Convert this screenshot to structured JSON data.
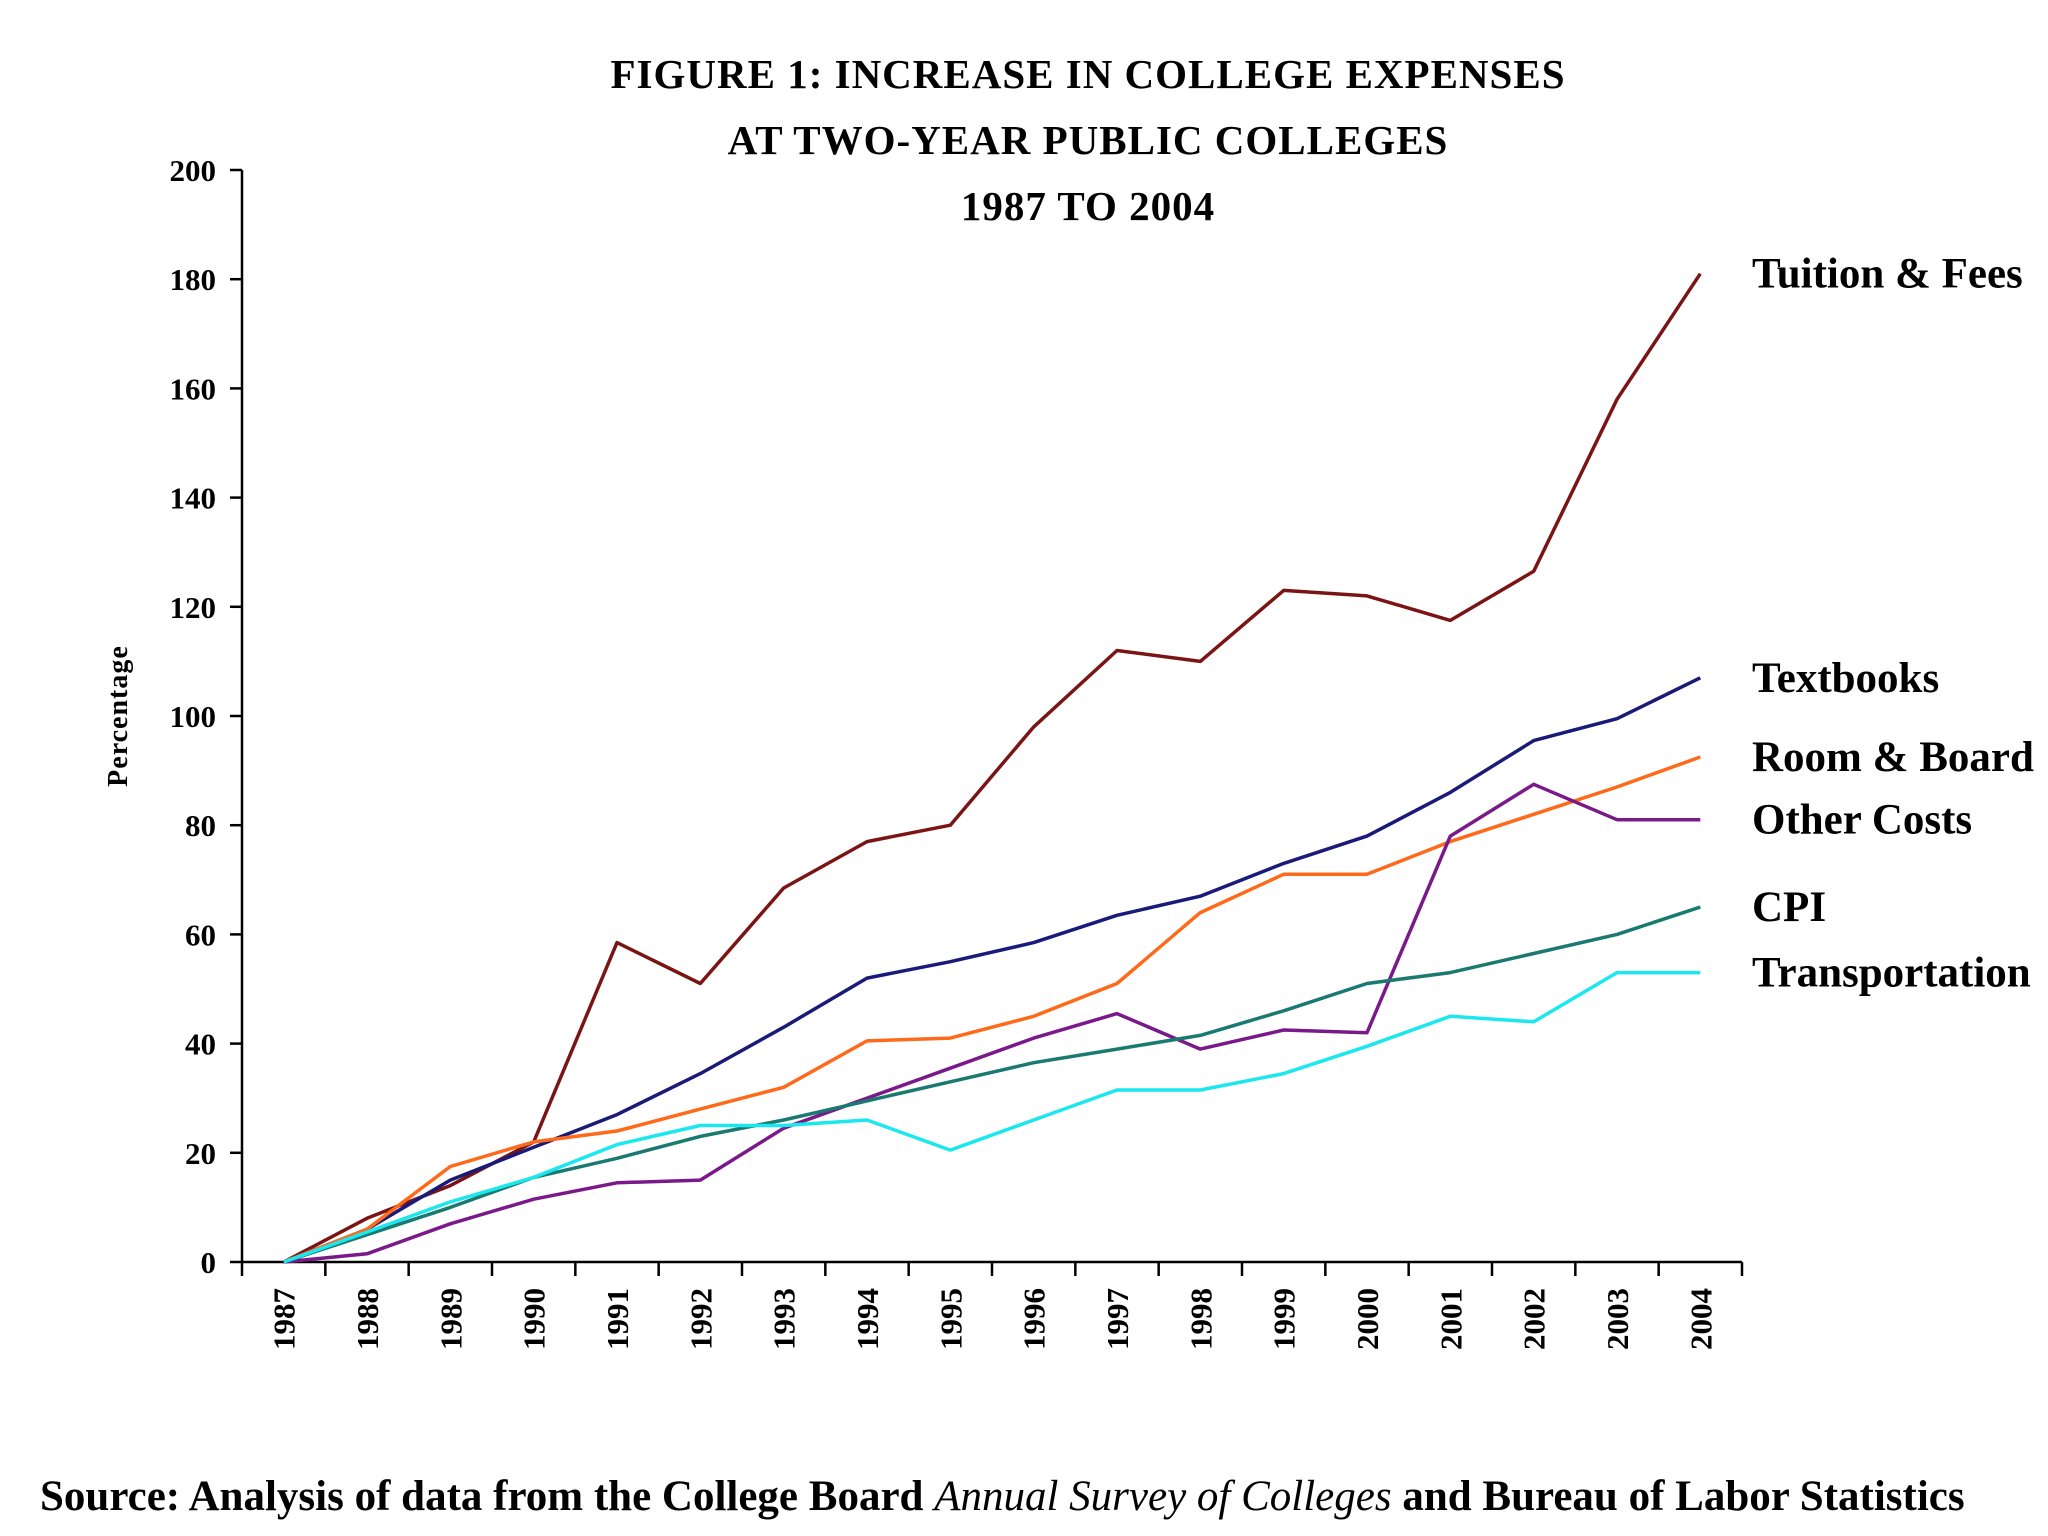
{
  "chart_data": {
    "type": "line",
    "title": [
      "FIGURE 1: INCREASE IN COLLEGE EXPENSES",
      "AT TWO-YEAR PUBLIC COLLEGES",
      "1987 TO 2004"
    ],
    "ylabel": "Percentage",
    "xlabel": "",
    "ylim": [
      0,
      200
    ],
    "yticks": [
      0,
      20,
      40,
      60,
      80,
      100,
      120,
      140,
      160,
      180,
      200
    ],
    "categories": [
      "1987",
      "1988",
      "1989",
      "1990",
      "1991",
      "1992",
      "1993",
      "1994",
      "1995",
      "1996",
      "1997",
      "1998",
      "1999",
      "2000",
      "2001",
      "2002",
      "2003",
      "2004"
    ],
    "grid": false,
    "legend": "inline labels at right end of each line",
    "series": [
      {
        "name": "Tuition & Fees",
        "color": "#7b1515",
        "values": [
          0,
          8,
          14,
          22,
          58.5,
          51,
          68.5,
          77,
          80,
          98,
          112,
          110,
          123,
          122,
          117.5,
          126.5,
          158,
          181
        ]
      },
      {
        "name": "Textbooks",
        "color": "#1a1a7a",
        "values": [
          0,
          6,
          15,
          21,
          27,
          34.5,
          43,
          52,
          55,
          58.5,
          63.5,
          67,
          73,
          78,
          86,
          95.5,
          99.5,
          107
        ]
      },
      {
        "name": "Room & Board",
        "color": "#ff6a1a",
        "values": [
          0,
          6,
          17.5,
          22,
          24,
          28,
          32,
          40.5,
          41,
          45,
          51,
          64,
          71,
          71,
          77,
          82,
          87,
          92.5
        ]
      },
      {
        "name": "Other Costs",
        "color": "#7a1a8a",
        "values": [
          0,
          1.5,
          7,
          11.5,
          14.5,
          15,
          24.5,
          30,
          35.5,
          41,
          45.5,
          39,
          42.5,
          42,
          78,
          87.5,
          81,
          81
        ]
      },
      {
        "name": "CPI",
        "color": "#1a7a72",
        "values": [
          0,
          5,
          10,
          15.5,
          19,
          23,
          26,
          29.5,
          33,
          36.5,
          39,
          41.5,
          46,
          51,
          53,
          56.5,
          60,
          65
        ]
      },
      {
        "name": "Transportation",
        "color": "#1ae8ee",
        "values": [
          0,
          5.5,
          11,
          15.5,
          21.5,
          25,
          25,
          26,
          20.5,
          26,
          31.5,
          31.5,
          34.5,
          39.5,
          45,
          44,
          53,
          53
        ]
      }
    ]
  },
  "source": {
    "prefix": "Source: Analysis of data from the College Board ",
    "italic": "Annual Survey of Colleges",
    "suffix": " and Bureau of Labor Statistics"
  }
}
